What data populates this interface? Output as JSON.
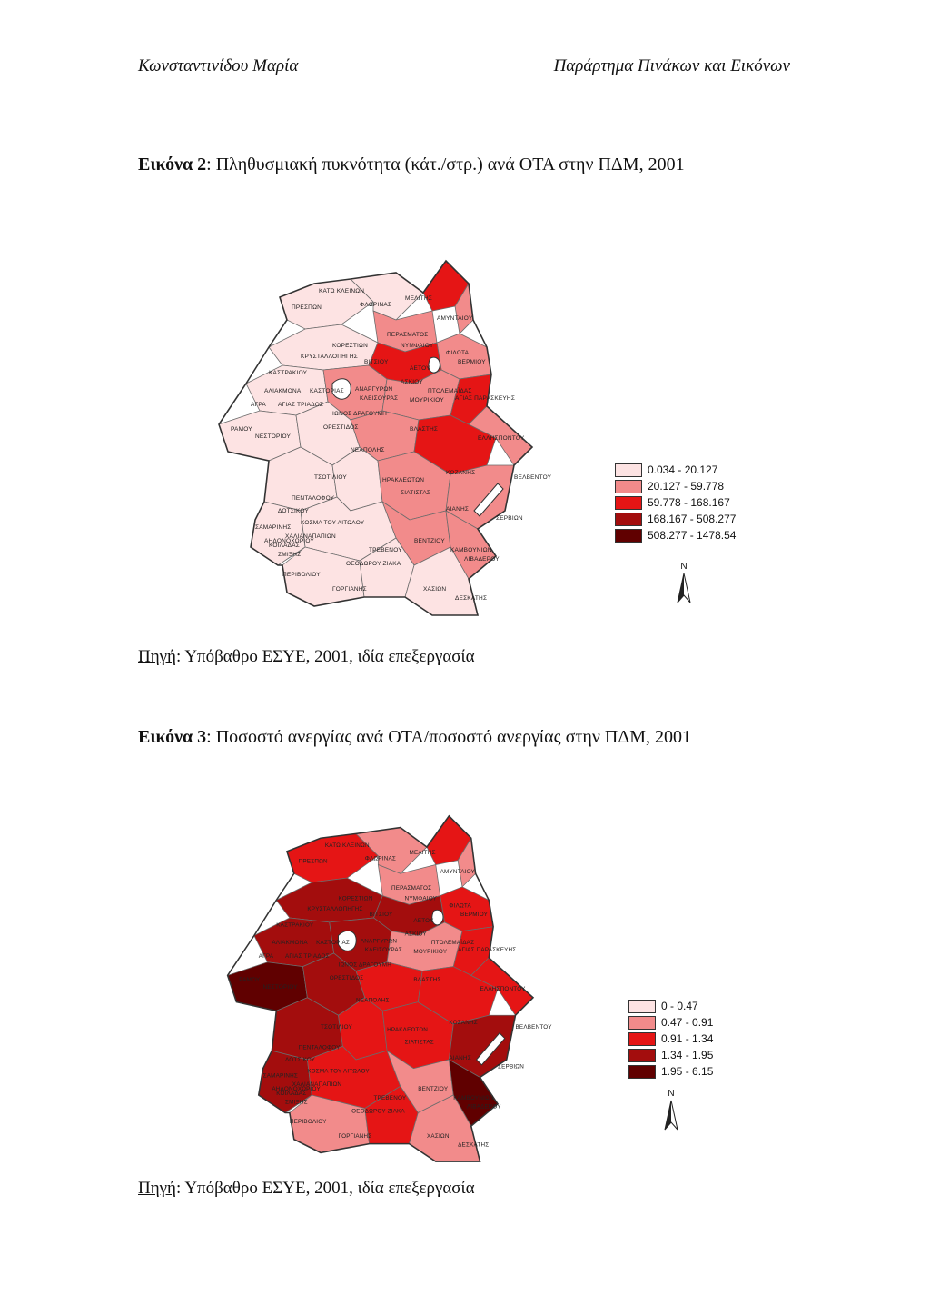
{
  "header": {
    "left": "Κωνσταντινίδου Μαρία",
    "right": "Παράρτημα Πινάκων και Εικόνων"
  },
  "figure2": {
    "caption_label": "Εικόνα 2",
    "caption_text": ": Πληθυσμιακή πυκνότητα (κάτ./στρ.) ανά ΟΤΑ στην ΠΔΜ, 2001",
    "source_label": "Πηγή",
    "source_text": ": Υπόβαθρο ΕΣΥΕ, 2001, ιδία επεξεργασία",
    "legend": [
      {
        "label": "0.034 - 20.127",
        "color": "#fde3e3"
      },
      {
        "label": "20.127 - 59.778",
        "color": "#f28b8b"
      },
      {
        "label": "59.778 - 168.167",
        "color": "#e51515"
      },
      {
        "label": "168.167 - 508.277",
        "color": "#a30d0d"
      },
      {
        "label": "508.277 - 1478.54",
        "color": "#600000"
      }
    ],
    "north": "N"
  },
  "figure3": {
    "caption_label": "Εικόνα 3",
    "caption_text": ": Ποσοστό ανεργίας ανά ΟΤΑ/ποσοστό ανεργίας στην ΠΔΜ, 2001",
    "source_label": "Πηγή",
    "source_text": ": Υπόβαθρο ΕΣΥΕ, 2001, ιδία επεξεργασία",
    "legend": [
      {
        "label": "0 - 0.47",
        "color": "#fde3e3"
      },
      {
        "label": "0.47 - 0.91",
        "color": "#f28b8b"
      },
      {
        "label": "0.91 - 1.34",
        "color": "#e51515"
      },
      {
        "label": "1.34 - 1.95",
        "color": "#a30d0d"
      },
      {
        "label": "1.95 - 6.15",
        "color": "#600000"
      }
    ],
    "north": "N"
  },
  "map_labels": [
    "ΚΑΤΩ ΚΛΕΙΝΩΝ",
    "ΠΡΕΣΠΩΝ",
    "ΦΛΩΡΙΝΑΣ",
    "ΜΕΛΙΤΗΣ",
    "ΑΜΥΝΤΑΙΟΥ",
    "ΠΕΡΑΣΜΑΤΟΣ",
    "ΚΟΡΕΣΤΙΩΝ",
    "ΚΡΥΣΤΑΛΛΟΠΗΓΗΣ",
    "ΝΥΜΦΑΙΟΥ",
    "ΦΙΛΩΤΑ",
    "ΒΙΤΣΙΟΥ",
    "ΑΕΤΟΥ",
    "ΒΕΡΜΙΟΥ",
    "ΚΑΣΤΡΑΚΙΟΥ",
    "ΑΣΚΙΟΥ",
    "ΚΑΣΤΟΡΙΑΣ",
    "ΑΝΑΡΓΥΡΩΝ",
    "ΚΛΕΙΣΟΥΡΑΣ",
    "ΠΤΟΛΕΜΑΪΔΑΣ",
    "ΑΛΙΑΚΜΟΝΑ",
    "ΜΟΥΡΙΚΙΟΥ",
    "ΑΓΙΑΣ ΠΑΡΑΣΚΕΥΗΣ",
    "ΑΓΙΑΣ ΤΡΙΑΔΟΣ",
    "ΙΩΝΟΣ ΔΡΑΓΟΥΜΗ",
    "ΑΓΡΑ",
    "ΡΑΜΟΥ",
    "ΝΕΣΤΟΡΙΟΥ",
    "ΟΡΕΣΤΙΔΟΣ",
    "ΒΛΑΣΤΗΣ",
    "ΕΛΛΗΣΠΟΝΤΟΥ",
    "ΝΕΑΠΟΛΗΣ",
    "ΚΟΖΑΝΗΣ",
    "ΒΕΛΒΕΝΤΟΥ",
    "ΤΣΟΤΙΛΙΟΥ",
    "ΣΙΑΤΙΣΤΑΣ",
    "ΑΙΑΝΗΣ",
    "ΣΕΡΒΙΩΝ",
    "ΗΡΑΚΛΕΩΤΩΝ",
    "ΠΕΝΤΑΛΟΦΟΥ",
    "ΔΟΤΣΙΚΟΥ",
    "ΚΟΣΜΑ ΤΟΥ ΑΙΤΩΛΟΥ",
    "ΣΑΜΑΡΙΝΗΣ",
    "ΣΜΙΞΗΣ",
    "ΑΗΔΟΝΟΧΩΡΙΟΥ",
    "ΒΕΝΤΖΙΟΥ",
    "ΚΑΜΒΟΥΝΙΩΝ",
    "ΛΙΒΑΔΕΡΟΥ",
    "ΔΕΣΚΑΤΗΣ",
    "ΧΑΣΙΩΝ",
    "ΓΟΡΓΙΑΝΗΣ",
    "ΘΕΟΔΩΡΟΥ ΖΙΑΚΑ",
    "ΤΡΕΒΕΝΟΥ",
    "ΠΕΡΙΒΟΛΙΟΥ",
    "ΧΑΛΙΑΝΑΠΑΠΙΩΝ",
    "ΚΟΙΛΑΔΑΣ"
  ]
}
